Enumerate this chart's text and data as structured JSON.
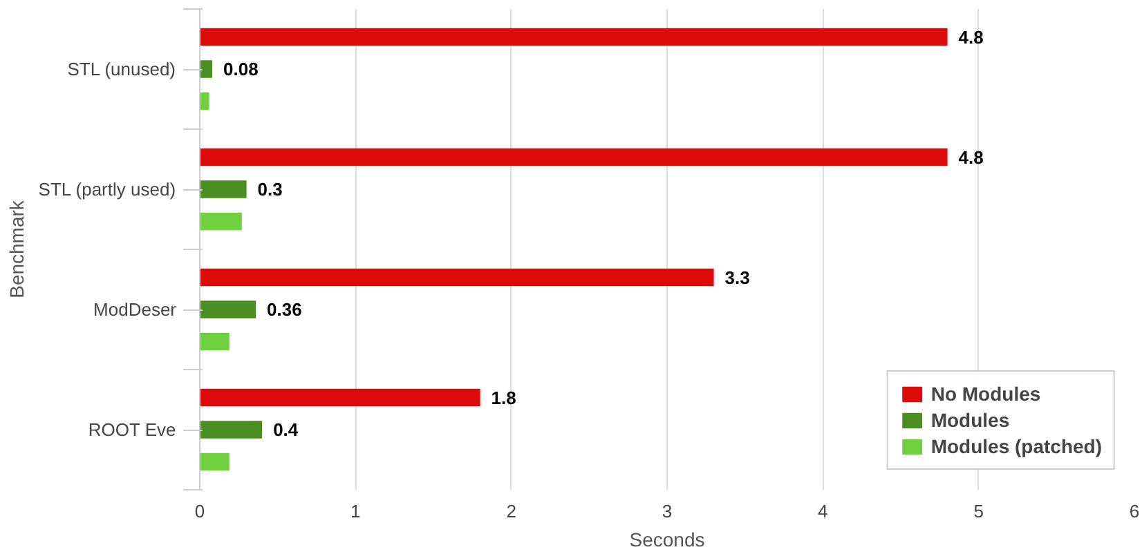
{
  "chart_data": {
    "type": "bar",
    "orientation": "horizontal",
    "xlabel": "Seconds",
    "ylabel": "Benchmark",
    "categories": [
      "STL (unused)",
      "STL (partly used)",
      "ModDeser",
      "ROOT Eve"
    ],
    "series": [
      {
        "name": "No Modules",
        "color": "#dd0a0a",
        "values": [
          4.8,
          4.8,
          3.3,
          1.8
        ],
        "value_labels": [
          "4.8",
          "4.8",
          "3.3",
          "1.8"
        ]
      },
      {
        "name": "Modules",
        "color": "#4b8e22",
        "values": [
          0.08,
          0.3,
          0.36,
          0.4
        ],
        "value_labels": [
          "0.08",
          "0.3",
          "0.36",
          "0.4"
        ]
      },
      {
        "name": "Modules (patched)",
        "color": "#70d040",
        "values": [
          0.06,
          0.27,
          0.19,
          0.19
        ]
      }
    ],
    "xlim": [
      0,
      6
    ],
    "xticks": [
      0,
      1,
      2,
      3,
      4,
      5,
      6
    ],
    "grid": "x",
    "legend": "bottom right"
  }
}
